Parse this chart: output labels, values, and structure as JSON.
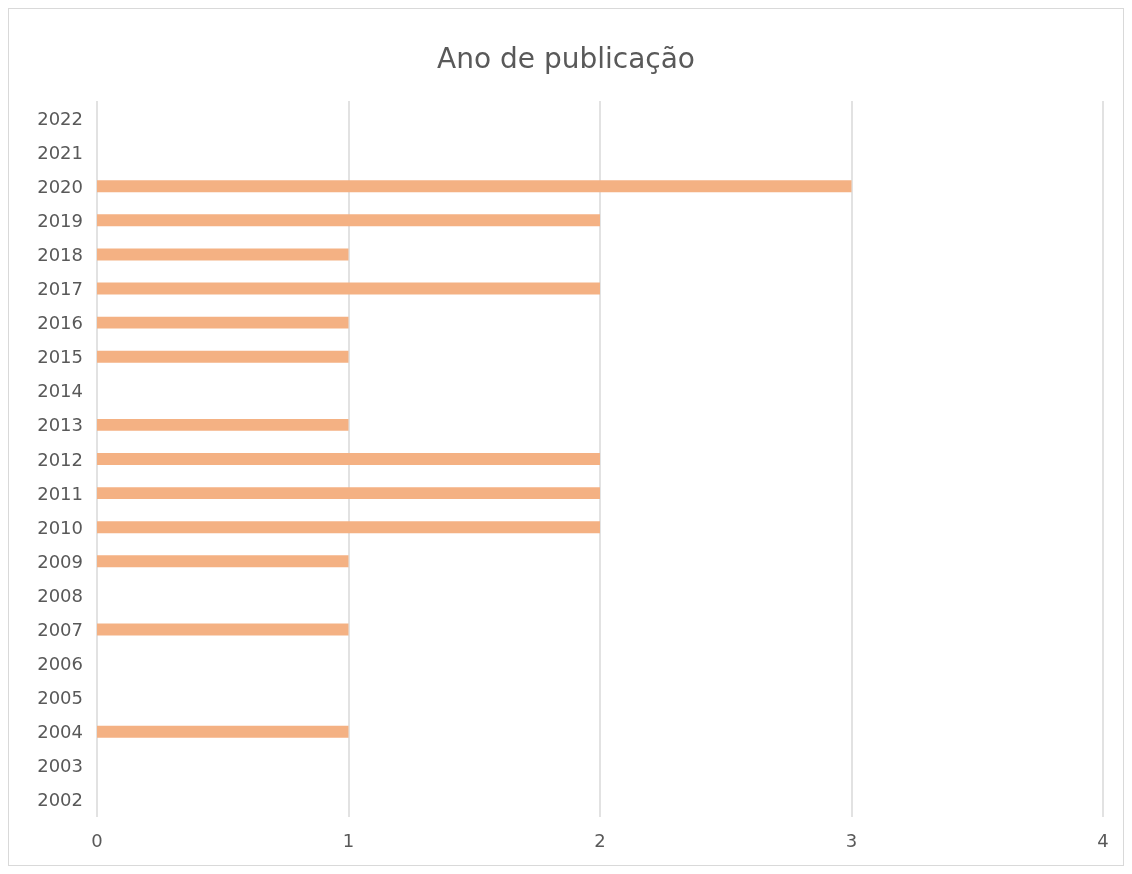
{
  "chart_data": {
    "type": "bar",
    "title": "Ano de publicação",
    "orientation": "horizontal",
    "categories": [
      "2022",
      "2021",
      "2020",
      "2019",
      "2018",
      "2017",
      "2016",
      "2015",
      "2014",
      "2013",
      "2012",
      "2011",
      "2010",
      "2009",
      "2008",
      "2007",
      "2006",
      "2005",
      "2004",
      "2003",
      "2002"
    ],
    "values": [
      0,
      0,
      3,
      2,
      1,
      2,
      1,
      1,
      0,
      1,
      2,
      2,
      2,
      1,
      0,
      1,
      0,
      0,
      1,
      0,
      0
    ],
    "color": "#f4b183",
    "xlim": [
      0,
      4
    ],
    "xticks": [
      0,
      1,
      2,
      3,
      4
    ],
    "grid": "x"
  }
}
